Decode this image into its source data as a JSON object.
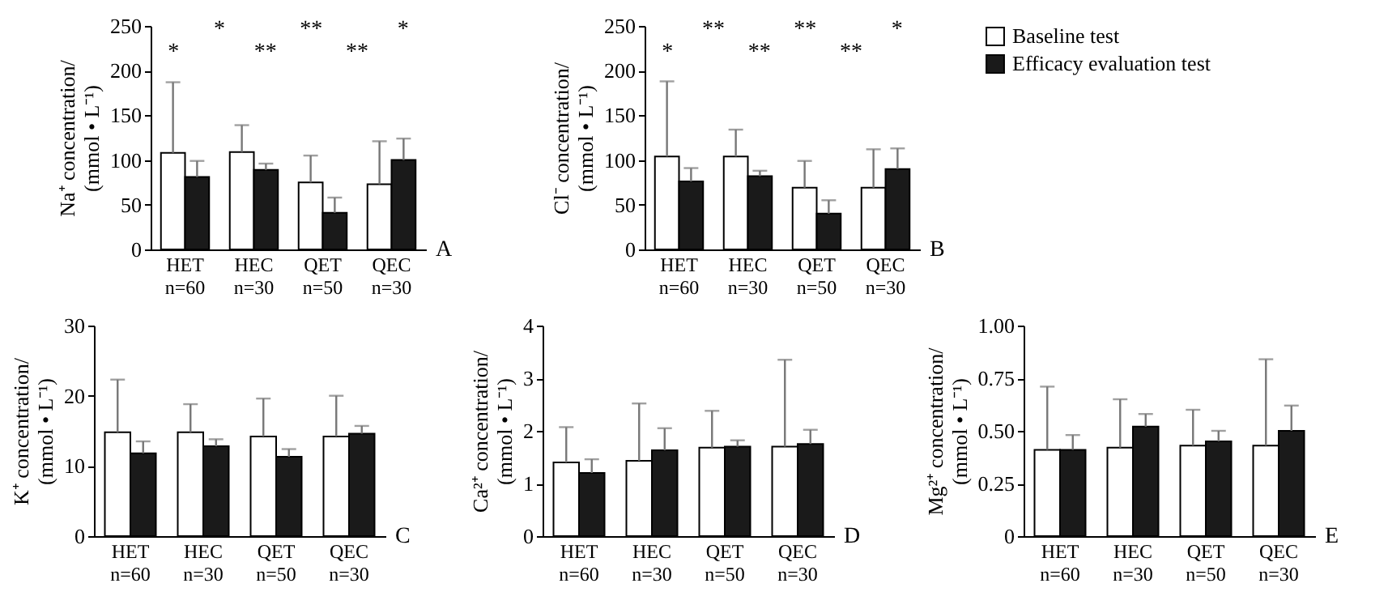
{
  "chart_data": [
    {
      "type": "bar",
      "ylabel": "Na⁺ concentration/\n(mmol • L⁻¹)",
      "categories": [
        "HET\nn=60",
        "HEC\nn=30",
        "QET\nn=50",
        "QEC\nn=30"
      ],
      "ylim": [
        0,
        250
      ],
      "yticks": [
        0,
        50,
        100,
        150,
        200,
        250
      ],
      "grid": false,
      "legend": false,
      "series": [
        {
          "color": "#ffffff",
          "values": [
            108,
            109,
            75,
            73
          ],
          "errors": [
            [
              108,
              187
            ],
            [
              109,
              139
            ],
            [
              75,
              105
            ],
            [
              73,
              121
            ]
          ]
        },
        {
          "color": "#1a1a1a",
          "values": [
            81,
            89,
            41,
            100
          ],
          "errors": [
            [
              81,
              99
            ],
            [
              89,
              96
            ],
            [
              41,
              58
            ],
            [
              100,
              124
            ]
          ]
        }
      ],
      "annotations": [
        "*",
        "*",
        "**",
        "**",
        "**",
        "*",
        "A"
      ]
    },
    {
      "type": "bar",
      "ylabel": "Cl⁻ concentration/\n(mmol • L⁻¹)",
      "categories": [
        "HET\nn=60",
        "HEC\nn=30",
        "QET\nn=50",
        "QEC\nn=30"
      ],
      "ylim": [
        0,
        250
      ],
      "yticks": [
        0,
        50,
        100,
        150,
        200,
        250
      ],
      "grid": false,
      "legend": "right",
      "series": [
        {
          "name": "Baseline test",
          "color": "#ffffff",
          "values": [
            104,
            104,
            69,
            69
          ],
          "errors": [
            [
              104,
              188
            ],
            [
              104,
              134
            ],
            [
              69,
              99
            ],
            [
              69,
              112
            ]
          ]
        },
        {
          "name": "Efficacy evaluation test",
          "color": "#1a1a1a",
          "values": [
            76,
            82,
            40,
            90
          ],
          "errors": [
            [
              76,
              91
            ],
            [
              82,
              88
            ],
            [
              40,
              55
            ],
            [
              90,
              113
            ]
          ]
        }
      ],
      "annotations": [
        "*",
        "**",
        "**",
        "**",
        "**",
        "*",
        "B"
      ]
    },
    {
      "type": "bar",
      "ylabel": "K⁺ concentration/\n(mmol • L⁻¹)",
      "categories": [
        "HET\nn=60",
        "HEC\nn=30",
        "QET\nn=50",
        "QEC\nn=30"
      ],
      "ylim": [
        0,
        30
      ],
      "yticks": [
        0,
        10,
        20,
        30
      ],
      "grid": false,
      "legend": false,
      "series": [
        {
          "color": "#ffffff",
          "values": [
            14.8,
            14.8,
            14.2,
            14.2
          ],
          "errors": [
            [
              14.8,
              22.3
            ],
            [
              14.8,
              18.8
            ],
            [
              14.2,
              19.6
            ],
            [
              14.2,
              20.0
            ]
          ]
        },
        {
          "color": "#1a1a1a",
          "values": [
            11.8,
            12.8,
            11.3,
            14.6
          ],
          "errors": [
            [
              11.8,
              13.5
            ],
            [
              12.8,
              13.8
            ],
            [
              11.3,
              12.4
            ],
            [
              14.6,
              15.7
            ]
          ]
        }
      ],
      "annotations": [
        "C"
      ]
    },
    {
      "type": "bar",
      "ylabel": "Ca²⁺ concentration/\n(mmol • L⁻¹)",
      "categories": [
        "HET\nn=60",
        "HEC\nn=30",
        "QET\nn=50",
        "QEC\nn=30"
      ],
      "ylim": [
        0,
        4
      ],
      "yticks": [
        0,
        1,
        2,
        3,
        4
      ],
      "grid": false,
      "legend": false,
      "series": [
        {
          "color": "#ffffff",
          "values": [
            1.4,
            1.43,
            1.68,
            1.7
          ],
          "errors": [
            [
              1.4,
              2.07
            ],
            [
              1.43,
              2.52
            ],
            [
              1.68,
              2.38
            ],
            [
              1.7,
              3.35
            ]
          ]
        },
        {
          "color": "#1a1a1a",
          "values": [
            1.2,
            1.63,
            1.7,
            1.75
          ],
          "errors": [
            [
              1.2,
              1.46
            ],
            [
              1.63,
              2.05
            ],
            [
              1.7,
              1.82
            ],
            [
              1.75,
              2.02
            ]
          ]
        }
      ],
      "annotations": [
        "D"
      ]
    },
    {
      "type": "bar",
      "ylabel": "Mg²⁺ concentration/\n(mmol • L⁻¹)",
      "categories": [
        "HET\nn=60",
        "HEC\nn=30",
        "QET\nn=50",
        "QEC\nn=30"
      ],
      "ylim": [
        0,
        1
      ],
      "yticks": [
        0,
        {
          "value": 0.25,
          "label": "0.25"
        },
        {
          "value": 0.5,
          "label": "0.50"
        },
        {
          "value": 0.75,
          "label": "0.75"
        },
        {
          "value": 1,
          "label": "1.00"
        }
      ],
      "grid": false,
      "legend": false,
      "series": [
        {
          "color": "#ffffff",
          "values": [
            0.41,
            0.42,
            0.43,
            0.43
          ],
          "errors": [
            [
              0.41,
              0.71
            ],
            [
              0.42,
              0.65
            ],
            [
              0.43,
              0.6
            ],
            [
              0.43,
              0.84
            ]
          ]
        },
        {
          "color": "#1a1a1a",
          "values": [
            0.41,
            0.52,
            0.45,
            0.5
          ],
          "errors": [
            [
              0.41,
              0.48
            ],
            [
              0.52,
              0.58
            ],
            [
              0.45,
              0.5
            ],
            [
              0.5,
              0.62
            ]
          ]
        }
      ],
      "annotations": [
        "E"
      ]
    }
  ]
}
